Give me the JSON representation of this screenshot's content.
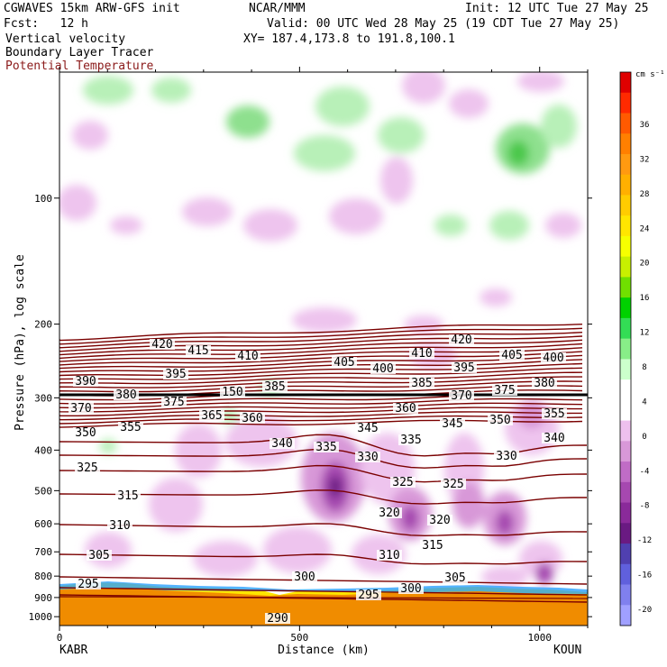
{
  "header": {
    "model": "CGWAVES 15km ARW-GFS init",
    "org": "NCAR/MMM",
    "init": "Init: 12 UTC Tue 27 May 25",
    "fcst": "Fcst:   12 h",
    "valid": "Valid: 00 UTC Wed 28 May 25 (19 CDT Tue 27 May 25)",
    "field1": "Vertical velocity",
    "field2": "Boundary Layer Tracer",
    "field3": "Potential Temperature",
    "xy": "XY= 187.4,173.8 to 191.8,100.1"
  },
  "colors": {
    "theta": "#7a0000",
    "field3_text": "#8b1a1a",
    "terrain": "#f08c00"
  },
  "chart_data": {
    "type": "heatmap",
    "xlabel": "Distance (km)",
    "ylabel": "Pressure (hPa), log scale",
    "x_ticks": [
      0,
      500,
      1000
    ],
    "y_ticks": [
      100,
      200,
      300,
      400,
      500,
      600,
      700,
      800,
      900,
      1000
    ],
    "xlim": [
      0,
      1100
    ],
    "ylim": [
      1050,
      50
    ],
    "y_scale": "log",
    "left_endpoint": "KABR",
    "right_endpoint": "KOUN",
    "colorbar": {
      "unit": "cm s⁻¹",
      "ticks": [
        36,
        32,
        28,
        24,
        20,
        16,
        12,
        8,
        4,
        0,
        -4,
        -8,
        -12,
        -16,
        -20
      ],
      "colors": [
        "#e00000",
        "#ff2a00",
        "#ff5a00",
        "#ff8000",
        "#ff9a10",
        "#ffb000",
        "#ffcc00",
        "#ffe600",
        "#f6ff00",
        "#c8f000",
        "#70e000",
        "#00d200",
        "#33dd55",
        "#88ee88",
        "#ccffcc",
        "#ffffff",
        "#ffffff",
        "#eec0ee",
        "#d898d8",
        "#c06cc6",
        "#a648b0",
        "#8a2a9a",
        "#6a1a82",
        "#5040b0",
        "#6060dd",
        "#8080ee",
        "#a0a0ff"
      ]
    },
    "theta_contours": [
      {
        "label": "420",
        "x": 180,
        "y": 385
      },
      {
        "label": "415",
        "x": 220,
        "y": 392
      },
      {
        "label": "410",
        "x": 275,
        "y": 398
      },
      {
        "label": "405",
        "x": 382,
        "y": 405
      },
      {
        "label": "400",
        "x": 425,
        "y": 412
      },
      {
        "label": "395",
        "x": 195,
        "y": 418
      },
      {
        "label": "390",
        "x": 95,
        "y": 426
      },
      {
        "label": "385",
        "x": 305,
        "y": 432
      },
      {
        "label": "380",
        "x": 140,
        "y": 441
      },
      {
        "label": "375",
        "x": 193,
        "y": 449
      },
      {
        "label": "370",
        "x": 90,
        "y": 456
      },
      {
        "label": "365",
        "x": 235,
        "y": 464
      },
      {
        "label": "360",
        "x": 280,
        "y": 467
      },
      {
        "label": "355",
        "x": 145,
        "y": 477
      },
      {
        "label": "350",
        "x": 95,
        "y": 483
      },
      {
        "label": "345",
        "x": 408,
        "y": 478
      },
      {
        "label": "340",
        "x": 313,
        "y": 495
      },
      {
        "label": "335",
        "x": 362,
        "y": 499
      },
      {
        "label": "330",
        "x": 408,
        "y": 510
      },
      {
        "label": "325",
        "x": 97,
        "y": 522
      },
      {
        "label": "315",
        "x": 142,
        "y": 553
      },
      {
        "label": "310",
        "x": 133,
        "y": 586
      },
      {
        "label": "305",
        "x": 110,
        "y": 619
      },
      {
        "label": "300",
        "x": 338,
        "y": 643
      },
      {
        "label": "295",
        "x": 98,
        "y": 651
      },
      {
        "label": "290",
        "x": 308,
        "y": 689
      },
      {
        "label": "420",
        "x": 512,
        "y": 380
      },
      {
        "label": "410",
        "x": 468,
        "y": 395
      },
      {
        "label": "400",
        "x": 614,
        "y": 400
      },
      {
        "label": "405",
        "x": 568,
        "y": 397
      },
      {
        "label": "395",
        "x": 515,
        "y": 411
      },
      {
        "label": "385",
        "x": 468,
        "y": 428
      },
      {
        "label": "380",
        "x": 604,
        "y": 428
      },
      {
        "label": "375",
        "x": 560,
        "y": 436
      },
      {
        "label": "370",
        "x": 512,
        "y": 442
      },
      {
        "label": "360",
        "x": 450,
        "y": 456
      },
      {
        "label": "355",
        "x": 615,
        "y": 462
      },
      {
        "label": "350",
        "x": 555,
        "y": 469
      },
      {
        "label": "345",
        "x": 502,
        "y": 473
      },
      {
        "label": "340",
        "x": 615,
        "y": 489
      },
      {
        "label": "335",
        "x": 456,
        "y": 491
      },
      {
        "label": "330",
        "x": 562,
        "y": 509
      },
      {
        "label": "325",
        "x": 447,
        "y": 538
      },
      {
        "label": "325",
        "x": 503,
        "y": 540
      },
      {
        "label": "320",
        "x": 432,
        "y": 572
      },
      {
        "label": "320",
        "x": 488,
        "y": 580
      },
      {
        "label": "315",
        "x": 480,
        "y": 608
      },
      {
        "label": "310",
        "x": 432,
        "y": 619
      },
      {
        "label": "305",
        "x": 505,
        "y": 644
      },
      {
        "label": "300",
        "x": 456,
        "y": 656
      },
      {
        "label": "295",
        "x": 409,
        "y": 663
      },
      {
        "label": "150",
        "x": 258,
        "y": 438
      }
    ]
  }
}
